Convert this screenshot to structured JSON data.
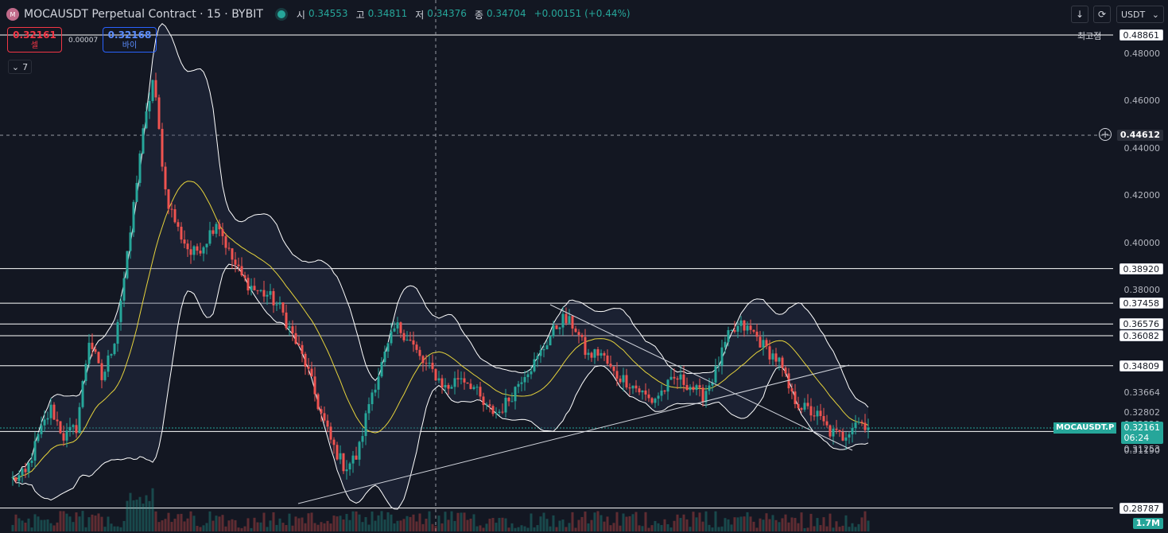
{
  "header": {
    "symbol_icon": "moca-coin-icon",
    "title": "MOCAUSDT Perpetual Contract · 15 · BYBIT",
    "ohlc": [
      {
        "label": "시",
        "value": "0.34553"
      },
      {
        "label": "고",
        "value": "0.34811"
      },
      {
        "label": "저",
        "value": "0.34376"
      },
      {
        "label": "종",
        "value": "0.34704"
      }
    ],
    "change": "+0.00151 (+0.44%)"
  },
  "trade": {
    "sell_price": "0.32161",
    "sell_label": "셀",
    "spread": "0.00007",
    "buy_price": "0.32168",
    "buy_label": "바이"
  },
  "indicator_toggle": {
    "count": "7"
  },
  "toolbar": {
    "currency": "USDT",
    "download_icon": "arrow-down-icon",
    "refresh_icon": "refresh-icon"
  },
  "ath": {
    "label": "최고점",
    "price": "0.48861"
  },
  "crosshair_price": "0.44612",
  "current": {
    "symbol": "MOCAUSDT.P",
    "price": "0.32161",
    "countdown": "06:24"
  },
  "volume_label": "1.7M",
  "colors": {
    "bg": "#131722",
    "up": "#26a69a",
    "down": "#ef5350",
    "ma": "#e6d33c",
    "band": "#ffffff"
  },
  "axis_ticks": [
    "0.48000",
    "0.46000",
    "0.44000",
    "0.42000",
    "0.40000",
    "0.38000"
  ],
  "levels": [
    {
      "price": "0.38920",
      "style": "white"
    },
    {
      "price": "0.37458",
      "style": "white"
    },
    {
      "price": "0.36576",
      "style": "white"
    },
    {
      "price": "0.36082",
      "style": "white"
    },
    {
      "price": "0.34809",
      "style": "white"
    },
    {
      "price": "0.33664",
      "style": "axis"
    },
    {
      "price": "0.32802",
      "style": "axis"
    },
    {
      "price": "0.32320",
      "style": "axis"
    },
    {
      "price": "0.32027",
      "style": "yellow"
    },
    {
      "price": "0.31862",
      "style": "axis"
    },
    {
      "price": "0.31253",
      "style": "axis"
    },
    {
      "price": "0.31190",
      "style": "axis"
    },
    {
      "price": "0.28787",
      "style": "white"
    }
  ],
  "chart_data": {
    "type": "candlestick",
    "close_path": [
      0.3,
      0.302,
      0.318,
      0.33,
      0.318,
      0.322,
      0.36,
      0.342,
      0.36,
      0.395,
      0.44,
      0.47,
      0.42,
      0.405,
      0.395,
      0.4,
      0.41,
      0.395,
      0.385,
      0.38,
      0.378,
      0.372,
      0.36,
      0.348,
      0.33,
      0.315,
      0.305,
      0.31,
      0.335,
      0.35,
      0.365,
      0.36,
      0.35,
      0.345,
      0.338,
      0.344,
      0.34,
      0.33,
      0.328,
      0.335,
      0.345,
      0.35,
      0.36,
      0.368,
      0.365,
      0.352,
      0.354,
      0.345,
      0.342,
      0.338,
      0.333,
      0.338,
      0.343,
      0.34,
      0.335,
      0.345,
      0.36,
      0.365,
      0.362,
      0.355,
      0.35,
      0.335,
      0.33,
      0.327,
      0.32,
      0.318,
      0.325,
      0.323
    ]
  }
}
